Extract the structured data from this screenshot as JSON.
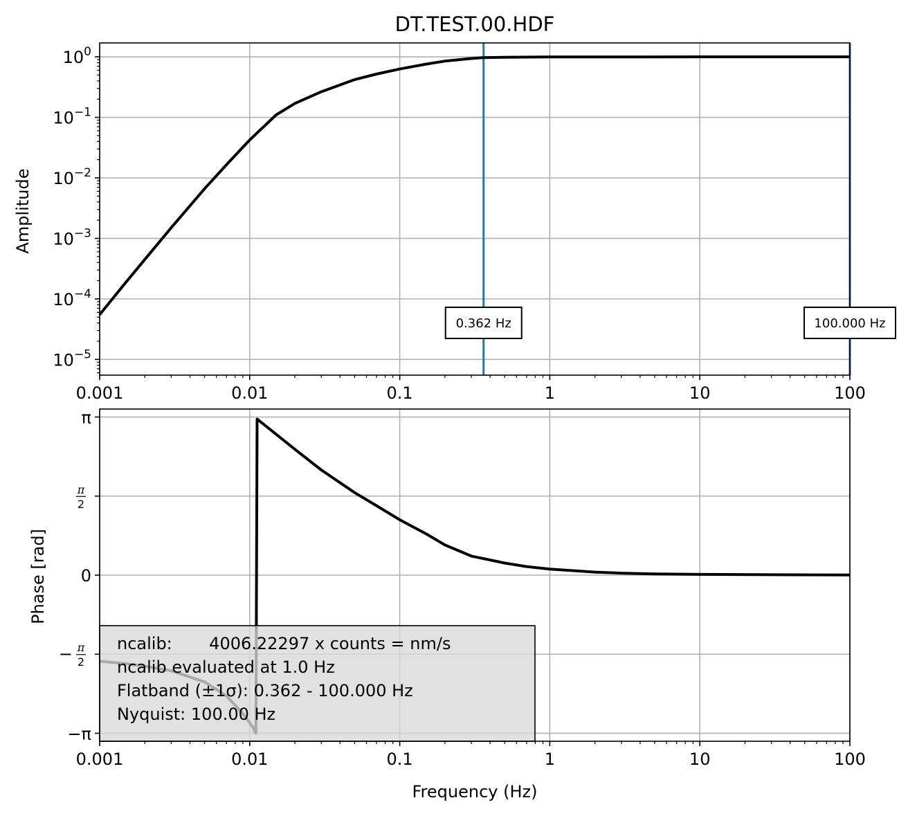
{
  "chart_data": [
    {
      "type": "line",
      "title": "DT.TEST.00.HDF",
      "xlabel": "",
      "ylabel": "Amplitude",
      "xscale": "log",
      "yscale": "log",
      "xlim": [
        0.001,
        100
      ],
      "ylim": [
        5.5e-06,
        1.7
      ],
      "xticks": [
        {
          "value": 0.001,
          "label": "0.001"
        },
        {
          "value": 0.01,
          "label": "0.01"
        },
        {
          "value": 0.1,
          "label": "0.1"
        },
        {
          "value": 1,
          "label": "1"
        },
        {
          "value": 10,
          "label": "10"
        },
        {
          "value": 100,
          "label": "100"
        }
      ],
      "yticks": [
        {
          "value": 1,
          "base": "10",
          "exp": "0"
        },
        {
          "value": 0.1,
          "base": "10",
          "exp": "−1"
        },
        {
          "value": 0.01,
          "base": "10",
          "exp": "−2"
        },
        {
          "value": 0.001,
          "base": "10",
          "exp": "−3"
        },
        {
          "value": 0.0001,
          "base": "10",
          "exp": "−4"
        },
        {
          "value": 1e-05,
          "base": "10",
          "exp": "−5"
        }
      ],
      "grid": true,
      "line_color": "#000000",
      "series": [
        {
          "x": [
            0.001,
            0.0015,
            0.002,
            0.003,
            0.005,
            0.007,
            0.01,
            0.015,
            0.02,
            0.03,
            0.05,
            0.07,
            0.1,
            0.15,
            0.2,
            0.3,
            0.36,
            0.5,
            1,
            2,
            5,
            10,
            30,
            100
          ],
          "y": [
            5.5e-05,
            0.00019,
            0.00045,
            0.0015,
            0.0066,
            0.0165,
            0.0424,
            0.11,
            0.17,
            0.265,
            0.42,
            0.52,
            0.63,
            0.76,
            0.85,
            0.94,
            0.97,
            0.985,
            0.995,
            0.998,
            0.999,
            1.0,
            1.0,
            1.0
          ]
        }
      ],
      "vlines": [
        {
          "x": 0.362,
          "color": "#1f77b4",
          "label": "0.362 Hz"
        },
        {
          "x": 100.0,
          "color": "#1f77b4",
          "label": "100.000 Hz"
        }
      ]
    },
    {
      "type": "line",
      "title": "",
      "xlabel": "Frequency (Hz)",
      "ylabel": "Phase [rad]",
      "xscale": "log",
      "yscale": "linear",
      "xlim": [
        0.001,
        100
      ],
      "ylim": [
        -3.3,
        3.3
      ],
      "xticks": [
        {
          "value": 0.001,
          "label": "0.001"
        },
        {
          "value": 0.01,
          "label": "0.01"
        },
        {
          "value": 0.1,
          "label": "0.1"
        },
        {
          "value": 1,
          "label": "1"
        },
        {
          "value": 10,
          "label": "10"
        },
        {
          "value": 100,
          "label": "100"
        }
      ],
      "yticks": [
        {
          "value": 3.14159,
          "label": "π",
          "kind": "plain"
        },
        {
          "value": 1.5708,
          "label": "π/2",
          "kind": "frac",
          "sign": ""
        },
        {
          "value": 0,
          "label": "0",
          "kind": "plain"
        },
        {
          "value": -1.5708,
          "label": "−π/2",
          "kind": "frac",
          "sign": "−"
        },
        {
          "value": -3.14159,
          "label": "−π",
          "kind": "plain"
        }
      ],
      "grid": true,
      "line_color": "#000000",
      "series": [
        {
          "x": [
            0.001,
            0.0015,
            0.002,
            0.003,
            0.005,
            0.007,
            0.009,
            0.0105,
            0.0108,
            0.011,
            0.0112,
            0.015,
            0.02,
            0.03,
            0.05,
            0.07,
            0.1,
            0.15,
            0.2,
            0.3,
            0.5,
            0.7,
            1,
            2,
            3,
            5,
            10,
            30,
            100
          ],
          "y": [
            -1.71,
            -1.76,
            -1.81,
            -1.9,
            -2.12,
            -2.4,
            -2.75,
            -3.02,
            -3.1,
            -3.14,
            3.1,
            2.8,
            2.5,
            2.09,
            1.64,
            1.38,
            1.1,
            0.82,
            0.6,
            0.38,
            0.24,
            0.17,
            0.12,
            0.06,
            0.04,
            0.025,
            0.015,
            0.008,
            0.003
          ]
        }
      ],
      "info_box": {
        "lines": [
          "ncalib:       4006.22297 x counts = nm/s",
          "ncalib evaluated at 1.0 Hz",
          "Flatband (±1σ): 0.362 - 100.000 Hz",
          "Nyquist: 100.00 Hz"
        ],
        "background": "#d9d9d9"
      }
    }
  ]
}
